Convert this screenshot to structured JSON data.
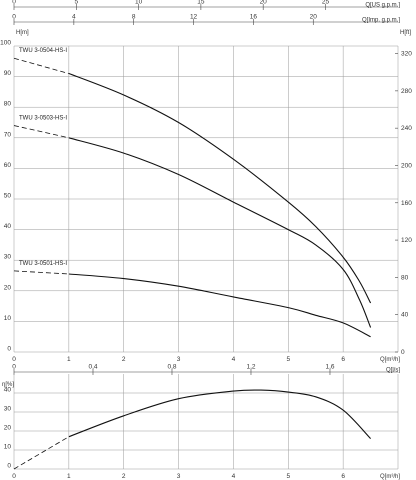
{
  "chart_data": [
    {
      "type": "line",
      "panel": "head",
      "xlabel": "Q[m³/h]",
      "ylabel_left": "H[m]",
      "ylabel_right": "H[ft]",
      "top_axis_1_label": "Q[US g.p.m.]",
      "top_axis_2_label": "Q[Imp. g.p.m.]",
      "xlim": [
        0,
        7
      ],
      "ylim": [
        0,
        100
      ],
      "ylim_right": [
        0,
        328.1
      ],
      "x_ticks": [
        0,
        1,
        2,
        3,
        4,
        5,
        6
      ],
      "y_ticks": [
        0,
        10,
        20,
        30,
        40,
        50,
        60,
        70,
        80,
        90,
        100
      ],
      "y_right_ticks": [
        0,
        40,
        80,
        120,
        160,
        200,
        240,
        280,
        320
      ],
      "top_axis_1_ticks": [
        0,
        5,
        10,
        15,
        20,
        25
      ],
      "top_axis_2_ticks": [
        0,
        4,
        8,
        12,
        16,
        20
      ],
      "grid": true,
      "series": [
        {
          "name": "TWU 3-0504-HS-I",
          "x": [
            1.0,
            2.0,
            3.0,
            4.0,
            5.0,
            5.5,
            6.0,
            6.3,
            6.5
          ],
          "y": [
            91,
            84,
            75,
            63,
            49,
            41,
            31,
            23,
            16
          ],
          "dashed_from": [
            0,
            96
          ]
        },
        {
          "name": "TWU 3-0503-HS-I",
          "x": [
            1.0,
            2.0,
            3.0,
            4.0,
            5.0,
            5.5,
            6.0,
            6.3,
            6.5
          ],
          "y": [
            70,
            65,
            58,
            49,
            40,
            35,
            27,
            17,
            8
          ],
          "dashed_from": [
            0,
            74
          ]
        },
        {
          "name": "TWU 3-0501-HS-I",
          "x": [
            1.0,
            2.0,
            3.0,
            4.0,
            5.0,
            5.5,
            6.0,
            6.5
          ],
          "y": [
            25.5,
            24,
            21.5,
            18,
            14.5,
            12,
            9.5,
            5
          ],
          "dashed_from": [
            0,
            26.5
          ]
        }
      ]
    },
    {
      "type": "line",
      "panel": "efficiency",
      "xlabel": "Q[m³/h]",
      "ylabel": "η[%]",
      "top_axis_label": "Q[l/s]",
      "xlim": [
        0,
        7
      ],
      "ylim": [
        0,
        50
      ],
      "x_ticks": [
        0,
        1,
        2,
        3,
        4,
        5,
        6
      ],
      "y_ticks": [
        0,
        10,
        20,
        30,
        40
      ],
      "top_axis_ticks": [
        "0",
        "0,4",
        "0,8",
        "1,2",
        "1,6"
      ],
      "grid": true,
      "series": [
        {
          "x": [
            1.0,
            2.0,
            3.0,
            4.0,
            4.5,
            5.0,
            5.5,
            6.0,
            6.5
          ],
          "y": [
            17,
            28,
            37,
            41,
            41.5,
            40.5,
            38,
            31,
            16
          ],
          "dashed_from": [
            0,
            0
          ]
        }
      ]
    }
  ]
}
